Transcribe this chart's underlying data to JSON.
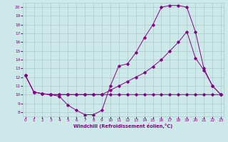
{
  "xlabel": "Windchill (Refroidissement éolien,°C)",
  "bg_color": "#cce8e8",
  "grid_color": "#aacccc",
  "line_color": "#880088",
  "xlim": [
    -0.3,
    23.3
  ],
  "ylim": [
    7.5,
    20.5
  ],
  "xticks": [
    0,
    1,
    2,
    3,
    4,
    5,
    6,
    7,
    8,
    9,
    10,
    11,
    12,
    13,
    14,
    15,
    16,
    17,
    18,
    19,
    20,
    21,
    22,
    23
  ],
  "yticks": [
    8,
    9,
    10,
    11,
    12,
    13,
    14,
    15,
    16,
    17,
    18,
    19,
    20
  ],
  "curve1": {
    "x": [
      0,
      1,
      2,
      3,
      4,
      5,
      6,
      7,
      8,
      9,
      10,
      11,
      12,
      13,
      14,
      15,
      16,
      17,
      18,
      19,
      20,
      21,
      22,
      23
    ],
    "y": [
      12.2,
      10.3,
      10.1,
      10.0,
      9.8,
      8.8,
      8.2,
      7.7,
      7.7,
      8.2,
      11.0,
      13.3,
      13.5,
      14.8,
      16.5,
      18.0,
      20.0,
      20.2,
      20.2,
      20.0,
      17.2,
      13.0,
      11.0,
      10.0
    ]
  },
  "curve2": {
    "x": [
      0,
      1,
      2,
      3,
      4,
      5,
      6,
      7,
      8,
      9,
      10,
      11,
      12,
      13,
      14,
      15,
      16,
      17,
      18,
      19,
      20,
      21,
      22,
      23
    ],
    "y": [
      12.2,
      10.3,
      10.1,
      10.0,
      10.0,
      10.0,
      10.0,
      10.0,
      10.0,
      10.0,
      10.0,
      10.0,
      10.0,
      10.0,
      10.0,
      10.0,
      10.0,
      10.0,
      10.0,
      10.0,
      10.0,
      10.0,
      10.0,
      10.0
    ]
  },
  "curve3": {
    "x": [
      0,
      1,
      2,
      3,
      4,
      5,
      6,
      7,
      8,
      9,
      10,
      11,
      12,
      13,
      14,
      15,
      16,
      17,
      18,
      19,
      20,
      21,
      22,
      23
    ],
    "y": [
      12.2,
      10.3,
      10.1,
      10.0,
      10.0,
      10.0,
      10.0,
      10.0,
      10.0,
      10.0,
      10.5,
      11.0,
      11.5,
      12.0,
      12.5,
      13.2,
      14.0,
      15.0,
      16.0,
      17.2,
      14.2,
      12.8,
      11.0,
      10.0
    ]
  }
}
